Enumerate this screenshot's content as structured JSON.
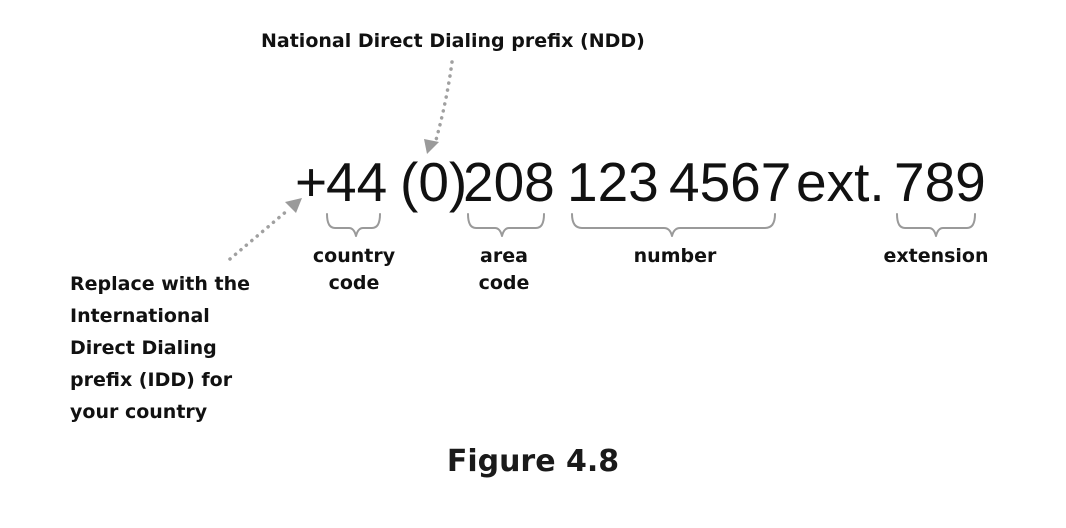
{
  "ndd_label": "National Direct Dialing prefix (NDD)",
  "idd_label_lines": [
    "Replace with the",
    "International",
    "Direct Dialing",
    "prefix (IDD) for",
    "your country"
  ],
  "phone_parts": {
    "plus": "+",
    "country_code": "44",
    "ndd": "(0)",
    "area_code": "208",
    "number_part1": "123",
    "number_part2": "4567",
    "ext_prefix": "ext.",
    "extension": "789"
  },
  "labels": {
    "country_code_lines": [
      "country",
      "code"
    ],
    "area_code_lines": [
      "area",
      "code"
    ],
    "number": "number",
    "extension": "extension"
  },
  "caption": "Figure 4.8",
  "colors": {
    "text": "#111111",
    "annotation_gray": "#9a9a9a"
  }
}
